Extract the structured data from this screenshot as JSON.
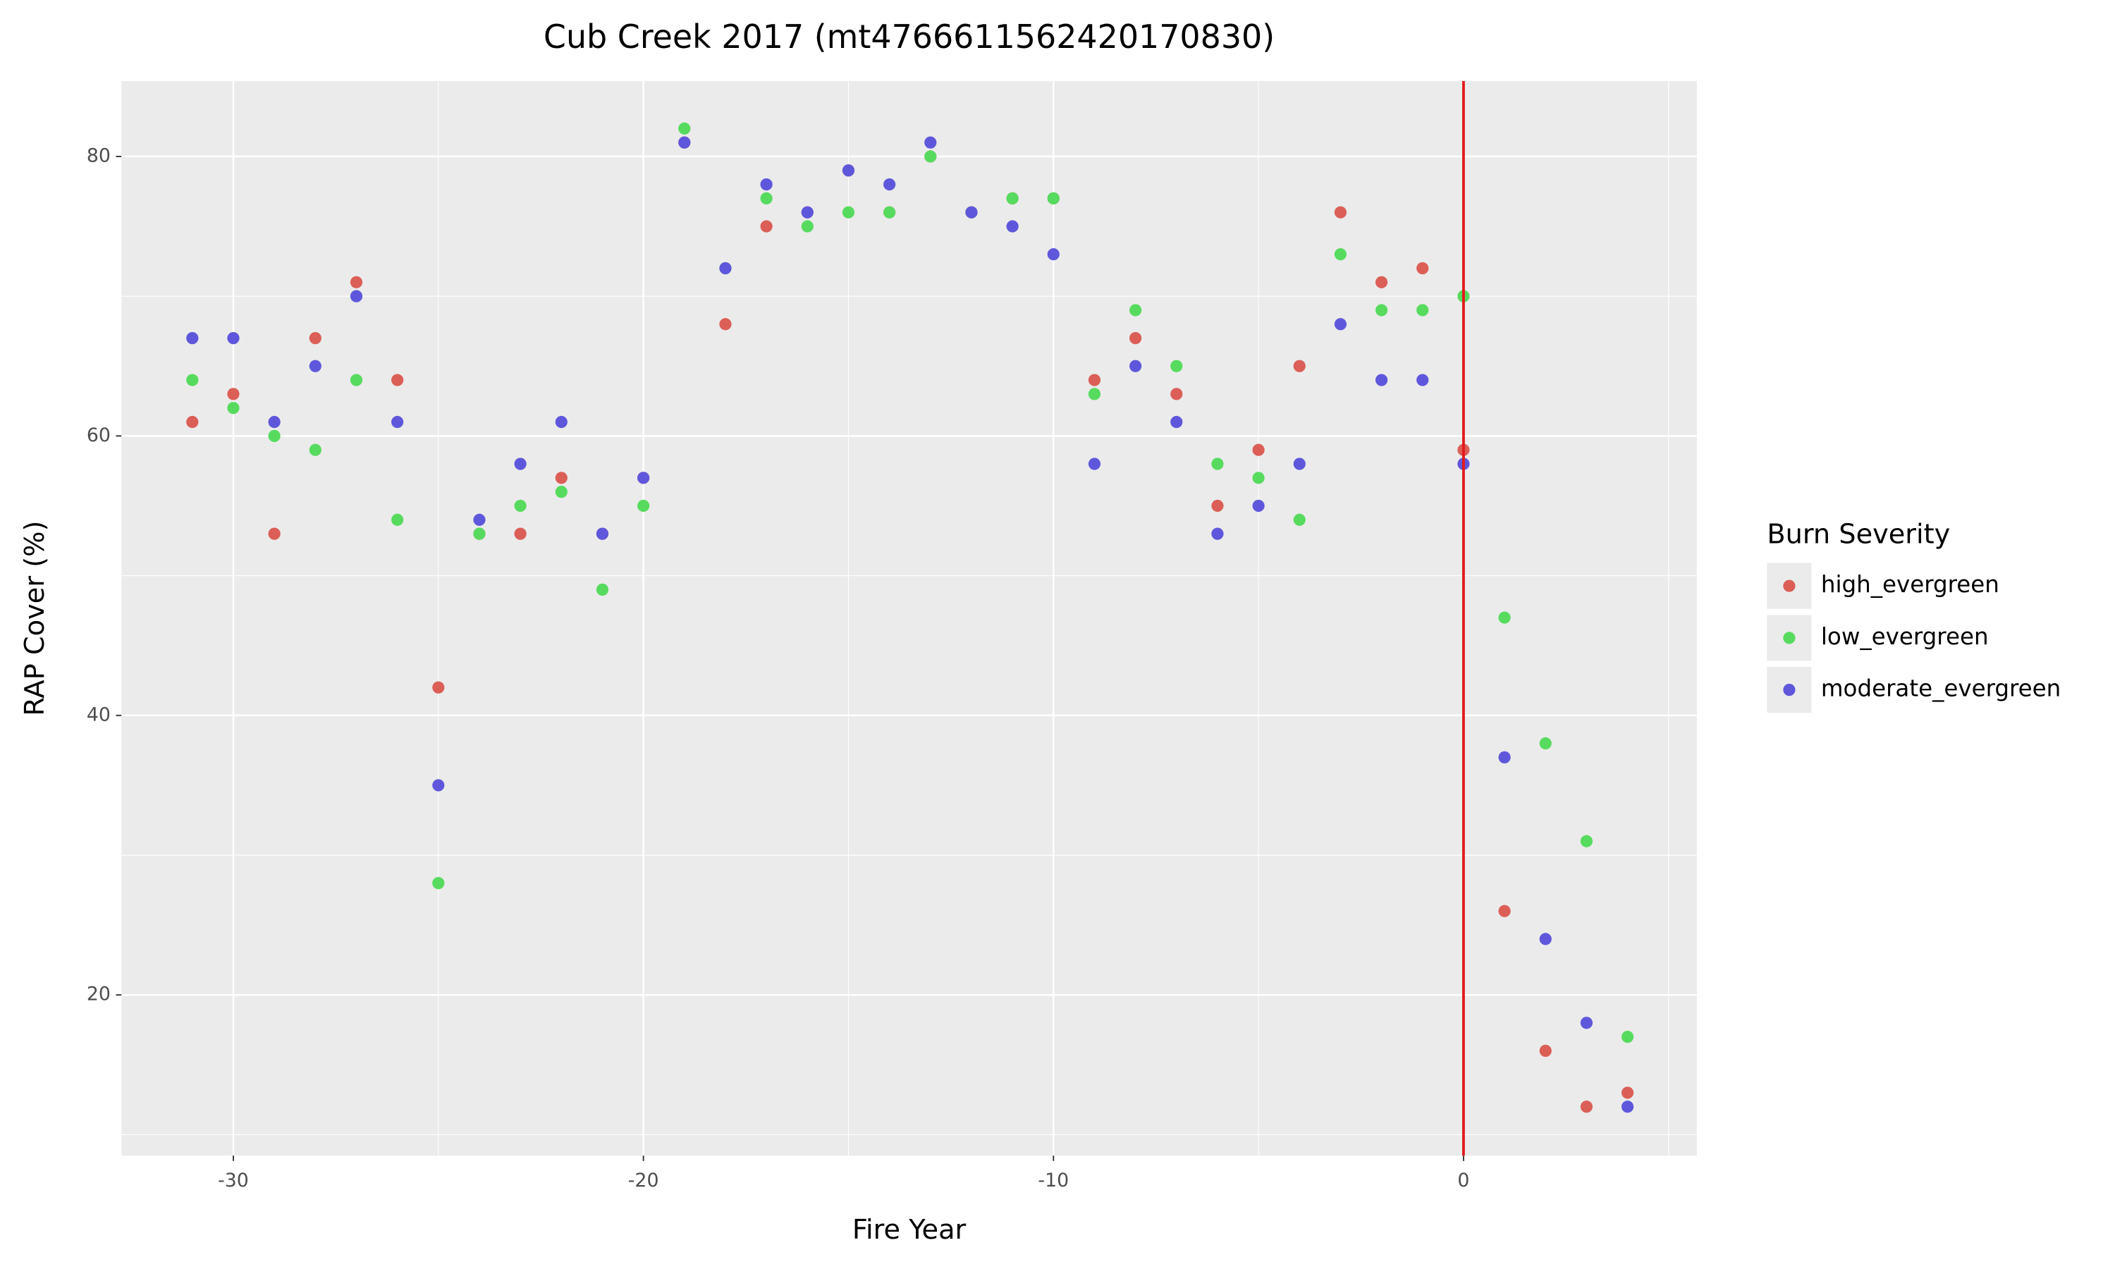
{
  "chart_data": {
    "type": "scatter",
    "title": "Cub Creek 2017 (mt4766611562420170830)",
    "x_label": "Fire Year",
    "y_label": "RAP Cover (%)",
    "legend_title": "Burn Severity",
    "legend_position": "right",
    "x": [
      -31,
      -30,
      -29,
      -28,
      -27,
      -26,
      -25,
      -24,
      -23,
      -22,
      -21,
      -20,
      -19,
      -18,
      -17,
      -16,
      -15,
      -14,
      -13,
      -12,
      -11,
      -10,
      -9,
      -8,
      -7,
      -6,
      -5,
      -4,
      -3,
      -2,
      -1,
      0,
      1,
      2,
      3,
      4
    ],
    "series": [
      {
        "name": "high_evergreen",
        "color": "#db5f57",
        "values": [
          61,
          63,
          53,
          67,
          71,
          64,
          42,
          53,
          53,
          57,
          53,
          57,
          81,
          68,
          75,
          76,
          79,
          76,
          80,
          76,
          77,
          77,
          64,
          67,
          63,
          55,
          59,
          65,
          76,
          71,
          72,
          59,
          26,
          16,
          12,
          13
        ]
      },
      {
        "name": "low_evergreen",
        "color": "#57db5f",
        "values": [
          64,
          62,
          60,
          59,
          64,
          54,
          28,
          53,
          55,
          56,
          49,
          55,
          82,
          72,
          77,
          75,
          76,
          76,
          80,
          76,
          77,
          77,
          63,
          69,
          65,
          58,
          57,
          54,
          73,
          69,
          69,
          70,
          47,
          38,
          31,
          17
        ]
      },
      {
        "name": "moderate_evergreen",
        "color": "#5f57db",
        "values": [
          67,
          67,
          61,
          65,
          70,
          61,
          35,
          54,
          58,
          61,
          53,
          57,
          81,
          72,
          78,
          76,
          79,
          78,
          81,
          76,
          75,
          73,
          58,
          65,
          61,
          53,
          55,
          58,
          68,
          64,
          64,
          58,
          37,
          24,
          18,
          12
        ]
      }
    ],
    "vline": 0,
    "vline_color": "#e31a1c",
    "xlim": [
      -32.73,
      5.69
    ],
    "ylim": [
      8.5,
      85.4
    ],
    "xticks": [
      -30,
      -20,
      -10,
      0
    ],
    "yticks": [
      20,
      40,
      60,
      80
    ],
    "grid": true
  }
}
